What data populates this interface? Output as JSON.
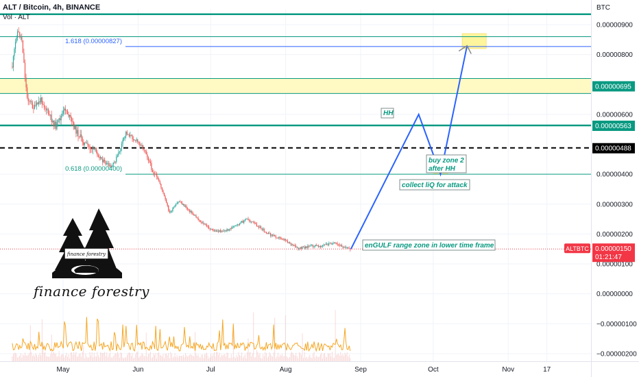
{
  "header": {
    "title": "ALT / Bitcoin, 4h, BINANCE",
    "volume_label": "Vol · ALT",
    "currency": "BTC"
  },
  "logo": {
    "badge_text": "finance forestry",
    "wordmark": "finance forestry"
  },
  "colors": {
    "up": "#26a69a",
    "down": "#ef5350",
    "teal_line": "#089981",
    "projection": "#2962ff",
    "zone_fill": "#fff9c4",
    "volume_line": "#f5a623",
    "last_price": "#f23645"
  },
  "chart_data": {
    "type": "candlestick",
    "title": "ALT / Bitcoin, 4h, BINANCE",
    "price_axis": {
      "unit": "BTC",
      "range": [
        -2.4e-06,
        9.3e-06
      ],
      "ticks": [
        "0.00000900",
        "0.00000800",
        "0.00000600",
        "0.00000400",
        "0.00000300",
        "0.00000200",
        "0.00000100",
        "0.00000000",
        "−0.00000100",
        "−0.00000200"
      ]
    },
    "time_axis": {
      "ticks": [
        "May",
        "Jun",
        "Jul",
        "Aug",
        "Sep",
        "Oct",
        "Nov",
        "17"
      ]
    },
    "close_path": [
      [
        "Apr 10",
        7.6e-06
      ],
      [
        "Apr 12",
        8.8e-06
      ],
      [
        "Apr 14",
        8.5e-06
      ],
      [
        "Apr 16",
        6.6e-06
      ],
      [
        "Apr 19",
        6.2e-06
      ],
      [
        "Apr 22",
        6.5e-06
      ],
      [
        "Apr 25",
        6e-06
      ],
      [
        "Apr 28",
        5.6e-06
      ],
      [
        "May 2",
        6.2e-06
      ],
      [
        "May 6",
        5.5e-06
      ],
      [
        "May 10",
        5e-06
      ],
      [
        "May 14",
        4.8e-06
      ],
      [
        "May 18",
        4.4e-06
      ],
      [
        "May 21",
        4.2e-06
      ],
      [
        "May 24",
        4.7e-06
      ],
      [
        "May 27",
        5.4e-06
      ],
      [
        "May 30",
        5.2e-06
      ],
      [
        "Jun 2",
        5e-06
      ],
      [
        "Jun 4",
        4.8e-06
      ],
      [
        "Jun 7",
        4.1e-06
      ],
      [
        "Jun 10",
        3.7e-06
      ],
      [
        "Jun 14",
        2.7e-06
      ],
      [
        "Jun 18",
        3.1e-06
      ],
      [
        "Jun 22",
        2.8e-06
      ],
      [
        "Jun 27",
        2.4e-06
      ],
      [
        "Jul 2",
        2.1e-06
      ],
      [
        "Jul 7",
        2.1e-06
      ],
      [
        "Jul 12",
        2.3e-06
      ],
      [
        "Jul 16",
        2.5e-06
      ],
      [
        "Jul 20",
        2.3e-06
      ],
      [
        "Jul 25",
        2e-06
      ],
      [
        "Aug 1",
        1.8e-06
      ],
      [
        "Aug 6",
        1.5e-06
      ],
      [
        "Aug 11",
        1.6e-06
      ],
      [
        "Aug 16",
        1.6e-06
      ],
      [
        "Aug 20",
        1.7e-06
      ],
      [
        "Aug 24",
        1.6e-06
      ],
      [
        "Aug 28",
        1.5e-06
      ]
    ],
    "levels": [
      {
        "label": "1.618 (0.00000827)",
        "value": 8.27e-06,
        "color": "#2962ff"
      },
      {
        "label": "0.618 (0.00000400)",
        "value": 4e-06,
        "color": "#089981"
      },
      {
        "label": "",
        "value": 9.35e-06,
        "color": "#089981"
      },
      {
        "label": "",
        "value": 8.6e-06,
        "color": "#089981"
      },
      {
        "label": "",
        "value": 7.2e-06,
        "color": "#089981"
      },
      {
        "label": "",
        "value": 6.7e-06,
        "color": "#089981"
      },
      {
        "label": "",
        "value": 5.63e-06,
        "color": "#089981"
      },
      {
        "label": "",
        "value": 4.88e-06,
        "color": "#000000"
      }
    ],
    "zones": [
      {
        "from": 6.7e-06,
        "to": 7.2e-06,
        "color": "#fff9c4"
      }
    ],
    "price_badges": [
      {
        "text": "0.00000695",
        "value": 6.95e-06,
        "bg": "#089981"
      },
      {
        "text": "0.00000563",
        "value": 5.63e-06,
        "bg": "#089981"
      },
      {
        "text": "0.00000488",
        "value": 4.88e-06,
        "bg": "#000000"
      },
      {
        "text": "0.00000150",
        "value": 1.5e-06,
        "bg": "#f23645",
        "symbol": "ALTBTC",
        "countdown": "01:21:47"
      }
    ],
    "projection": [
      [
        "Aug 28",
        1.5e-06
      ],
      [
        "Sep 25",
        6e-06
      ],
      [
        "Oct 4",
        4e-06
      ],
      [
        "Oct 15",
        8.3e-06
      ]
    ],
    "annotations": [
      {
        "text": "HH",
        "at": [
          "Sep 25",
          6e-06
        ]
      },
      {
        "text": "buy zone 2",
        "at": [
          "Oct 6",
          4.3e-06
        ]
      },
      {
        "text": "after HH",
        "at": [
          "Oct 6",
          4.3e-06
        ]
      },
      {
        "text": "collect liQ for attack",
        "at": [
          "Oct 3",
          3.4e-06
        ]
      },
      {
        "text": "enGULF range zone in lower time frame",
        "at": [
          "Sep 1",
          1.6e-06
        ]
      }
    ],
    "volume": {
      "label": "Vol · ALT",
      "series_color": "#f5a623"
    },
    "last_price": {
      "value": 1.5e-06,
      "text": "0.00000150",
      "countdown": "01:21:47",
      "symbol": "ALTBTC"
    }
  }
}
